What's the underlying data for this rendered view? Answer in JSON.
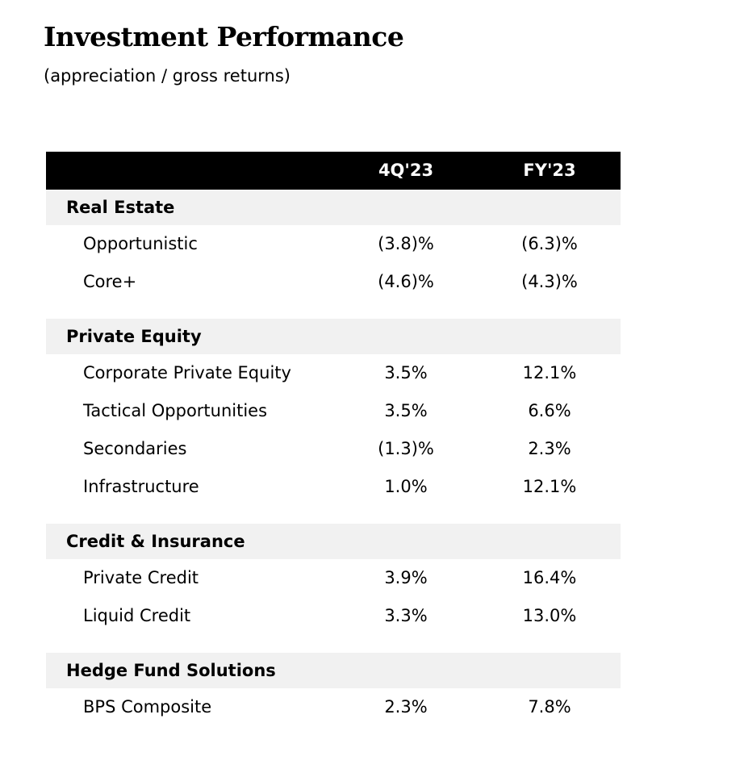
{
  "title": "Investment Performance",
  "subtitle": "(appreciation / gross returns)",
  "columns": [
    "4Q'23",
    "FY'23"
  ],
  "sections": [
    {
      "name": "Real Estate",
      "rows": [
        {
          "label": "Opportunistic",
          "q4": "(3.8)%",
          "fy": "(6.3)%"
        },
        {
          "label": "Core+",
          "q4": "(4.6)%",
          "fy": "(4.3)%"
        }
      ]
    },
    {
      "name": "Private Equity",
      "rows": [
        {
          "label": "Corporate Private Equity",
          "q4": "3.5%",
          "fy": "12.1%"
        },
        {
          "label": "Tactical Opportunities",
          "q4": "3.5%",
          "fy": "6.6%"
        },
        {
          "label": "Secondaries",
          "q4": "(1.3)%",
          "fy": "2.3%"
        },
        {
          "label": "Infrastructure",
          "q4": "1.0%",
          "fy": "12.1%"
        }
      ]
    },
    {
      "name": "Credit & Insurance",
      "rows": [
        {
          "label": "Private Credit",
          "q4": "3.9%",
          "fy": "16.4%"
        },
        {
          "label": "Liquid Credit",
          "q4": "3.3%",
          "fy": "13.0%"
        }
      ]
    },
    {
      "name": "Hedge Fund Solutions",
      "rows": [
        {
          "label": "BPS Composite",
          "q4": "2.3%",
          "fy": "7.8%"
        }
      ]
    }
  ]
}
